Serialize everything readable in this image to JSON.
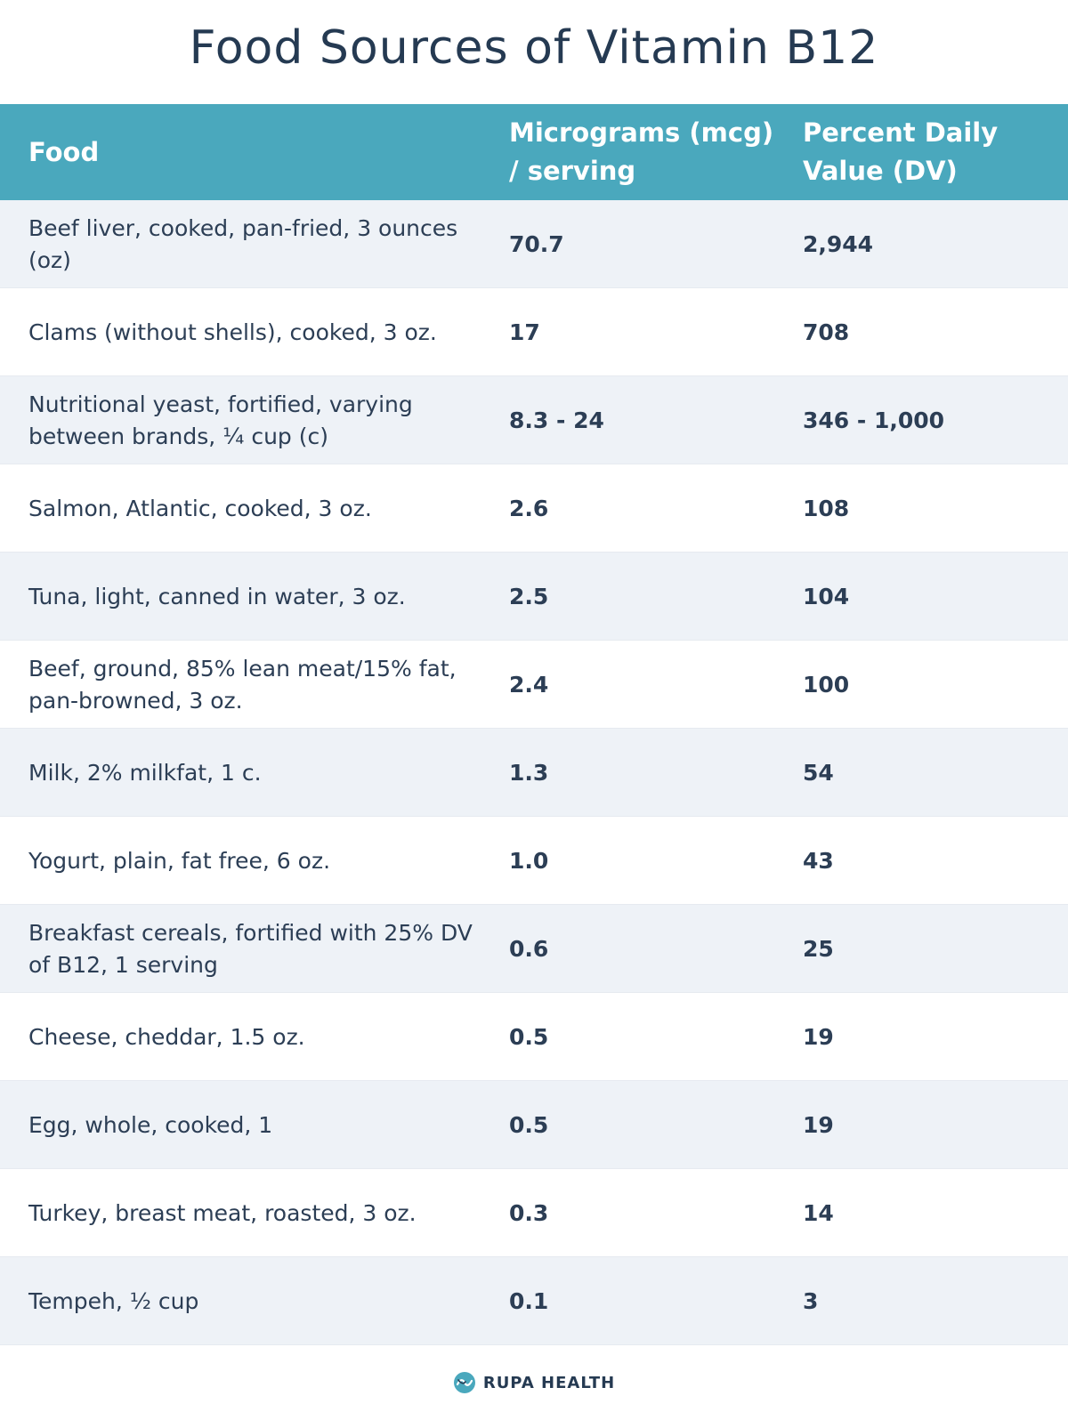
{
  "chart_data": {
    "type": "table",
    "title": "Food Sources of Vitamin B12",
    "columns": [
      "Food",
      "Micrograms (mcg) / serving",
      "Percent Daily Value (DV)"
    ],
    "rows": [
      {
        "food": "Beef liver, cooked, pan-fried, 3 ounces (oz)",
        "mcg": "70.7",
        "dv": "2,944"
      },
      {
        "food": "Clams (without shells), cooked, 3 oz.",
        "mcg": "17",
        "dv": "708"
      },
      {
        "food": "Nutritional yeast, fortified, varying between brands, ¼ cup (c)",
        "mcg": "8.3 - 24",
        "dv": "346 - 1,000"
      },
      {
        "food": "Salmon, Atlantic, cooked, 3 oz.",
        "mcg": "2.6",
        "dv": "108"
      },
      {
        "food": "Tuna, light, canned in water, 3 oz.",
        "mcg": "2.5",
        "dv": "104"
      },
      {
        "food": "Beef, ground, 85% lean meat/15% fat, pan-browned, 3 oz.",
        "mcg": "2.4",
        "dv": "100"
      },
      {
        "food": "Milk, 2% milkfat, 1 c.",
        "mcg": "1.3",
        "dv": "54"
      },
      {
        "food": "Yogurt, plain, fat free, 6 oz.",
        "mcg": "1.0",
        "dv": "43"
      },
      {
        "food": "Breakfast cereals, fortified with 25% DV of B12, 1 serving",
        "mcg": "0.6",
        "dv": "25"
      },
      {
        "food": "Cheese, cheddar, 1.5 oz.",
        "mcg": "0.5",
        "dv": "19"
      },
      {
        "food": "Egg, whole, cooked, 1",
        "mcg": "0.5",
        "dv": "19"
      },
      {
        "food": "Turkey, breast meat, roasted, 3 oz.",
        "mcg": "0.3",
        "dv": "14"
      },
      {
        "food": "Tempeh, ½ cup",
        "mcg": "0.1",
        "dv": "3"
      }
    ]
  },
  "footer": {
    "brand": "RUPA HEALTH",
    "icon": "rupa-health-logo-icon"
  },
  "colors": {
    "header_bg": "#4aa8bd",
    "header_text": "#ffffff",
    "row_alt_bg": "#eef2f7",
    "text": "#2c3e55",
    "title": "#253a52"
  }
}
